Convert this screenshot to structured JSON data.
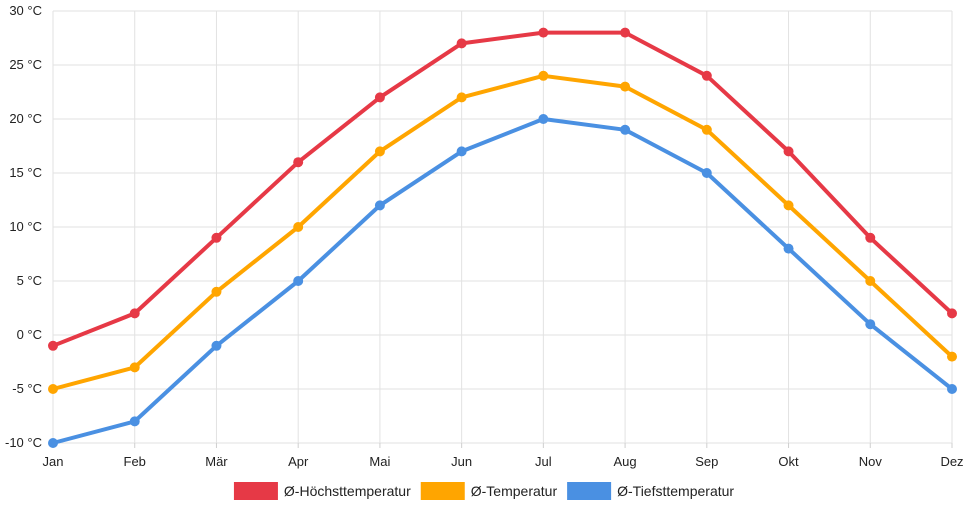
{
  "chart_data": {
    "type": "line",
    "categories": [
      "Jan",
      "Feb",
      "Mär",
      "Apr",
      "Mai",
      "Jun",
      "Jul",
      "Aug",
      "Sep",
      "Okt",
      "Nov",
      "Dez"
    ],
    "series": [
      {
        "name": "Ø-Höchsttemperatur",
        "color": "#e63946",
        "values": [
          -1,
          2,
          9,
          16,
          22,
          27,
          28,
          28,
          24,
          17,
          9,
          2
        ]
      },
      {
        "name": "Ø-Temperatur",
        "color": "#ffa500",
        "values": [
          -5,
          -3,
          4,
          10,
          17,
          22,
          24,
          23,
          19,
          12,
          5,
          -2
        ]
      },
      {
        "name": "Ø-Tiefsttemperatur",
        "color": "#4a90e2",
        "values": [
          -10,
          -8,
          -1,
          5,
          12,
          17,
          20,
          19,
          15,
          8,
          1,
          -5
        ]
      }
    ],
    "title": "",
    "xlabel": "",
    "ylabel": "",
    "ylim": [
      -10,
      30
    ],
    "y_ticks": [
      -10,
      -5,
      0,
      5,
      10,
      15,
      20,
      25,
      30
    ],
    "y_unit": "°C",
    "grid": true,
    "legend": "bottom-center"
  }
}
